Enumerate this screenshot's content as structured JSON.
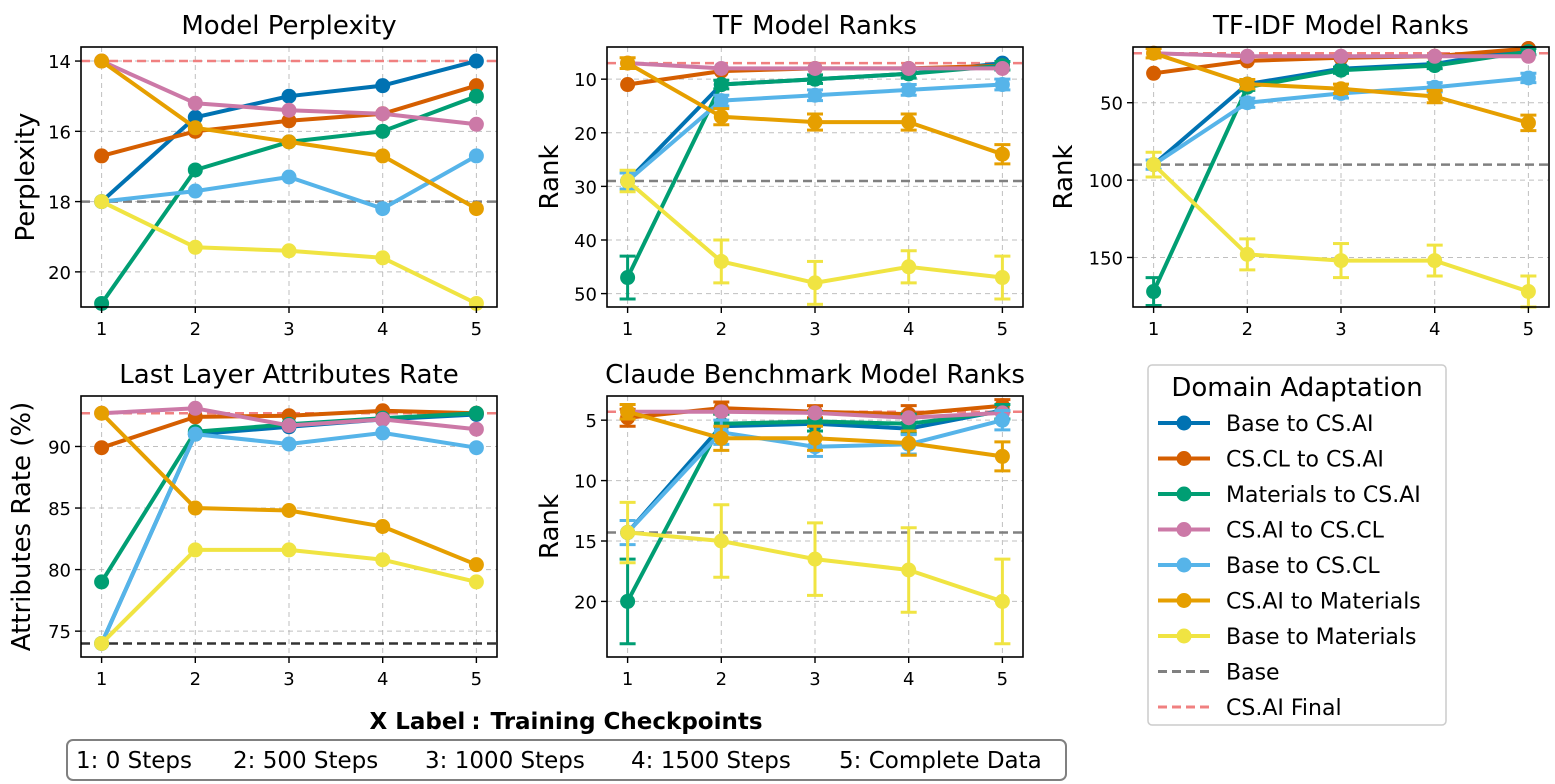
{
  "figure": {
    "x_label_caption": "X Label",
    "x_label_text": "Training Checkpoints",
    "x_label_separator": ":",
    "checkpoint_key": [
      "1: 0 Steps",
      "2: 500 Steps",
      "3: 1000 Steps",
      "4: 1500 Steps",
      "5: Complete Data"
    ]
  },
  "legend": {
    "title": "Domain Adaptation",
    "entries": [
      {
        "label": "Base to CS.AI",
        "color": "#0072b2",
        "style": "solid"
      },
      {
        "label": "CS.CL to CS.AI",
        "color": "#d55e00",
        "style": "solid"
      },
      {
        "label": "Materials to CS.AI",
        "color": "#009e73",
        "style": "solid"
      },
      {
        "label": "CS.AI to CS.CL",
        "color": "#cc79a7",
        "style": "solid"
      },
      {
        "label": "Base to CS.CL",
        "color": "#56b4e9",
        "style": "solid"
      },
      {
        "label": "CS.AI to Materials",
        "color": "#e69f00",
        "style": "solid"
      },
      {
        "label": "Base to Materials",
        "color": "#f0e442",
        "style": "solid"
      },
      {
        "label": "Base",
        "color": "#808080",
        "style": "dashed"
      },
      {
        "label": "CS.AI Final",
        "color": "#f08080",
        "style": "dashed"
      }
    ]
  },
  "chart_data": [
    {
      "type": "line",
      "title": "Model Perplexity",
      "ylabel": "Perplexity",
      "x": [
        1,
        2,
        3,
        4,
        5
      ],
      "xticks": [
        "1",
        "2",
        "3",
        "4",
        "5"
      ],
      "ylim": [
        21.0,
        13.6
      ],
      "yticks": [
        14,
        16,
        18,
        20
      ],
      "ytick_labels": [
        "14",
        "16",
        "18",
        "20"
      ],
      "inverted_y": true,
      "baseline": 18.0,
      "baseline_color": "#808080",
      "reference": 14.0,
      "series": [
        {
          "name": "Base to CS.AI",
          "color": "#0072b2",
          "values": [
            18.0,
            15.6,
            15.0,
            14.7,
            14.0
          ]
        },
        {
          "name": "CS.CL to CS.AI",
          "color": "#d55e00",
          "values": [
            16.7,
            16.0,
            15.7,
            15.5,
            14.7
          ]
        },
        {
          "name": "Materials to CS.AI",
          "color": "#009e73",
          "values": [
            20.9,
            17.1,
            16.3,
            16.0,
            15.0
          ]
        },
        {
          "name": "CS.AI to CS.CL",
          "color": "#cc79a7",
          "values": [
            14.0,
            15.2,
            15.4,
            15.5,
            15.8
          ]
        },
        {
          "name": "Base to CS.CL",
          "color": "#56b4e9",
          "values": [
            18.0,
            17.7,
            17.3,
            18.2,
            16.7
          ]
        },
        {
          "name": "CS.AI to Materials",
          "color": "#e69f00",
          "values": [
            14.0,
            15.9,
            16.3,
            16.7,
            18.2
          ]
        },
        {
          "name": "Base to Materials",
          "color": "#f0e442",
          "values": [
            18.0,
            19.3,
            19.4,
            19.6,
            20.9
          ]
        }
      ]
    },
    {
      "type": "line",
      "title": "TF Model Ranks",
      "ylabel": "Rank",
      "x": [
        1,
        2,
        3,
        4,
        5
      ],
      "xticks": [
        "1",
        "2",
        "3",
        "4",
        "5"
      ],
      "ylim": [
        52.5,
        4.0
      ],
      "yticks": [
        10,
        20,
        30,
        40,
        50
      ],
      "ytick_labels": [
        "10",
        "20",
        "30",
        "40",
        "50"
      ],
      "inverted_y": true,
      "baseline": 29.0,
      "baseline_color": "#808080",
      "reference": 7.0,
      "series": [
        {
          "name": "Base to CS.AI",
          "color": "#0072b2",
          "values": [
            29,
            11,
            10,
            9,
            7
          ]
        },
        {
          "name": "CS.CL to CS.AI",
          "color": "#d55e00",
          "values": [
            11,
            8.5,
            8,
            8,
            7.5
          ]
        },
        {
          "name": "Materials to CS.AI",
          "color": "#009e73",
          "values": [
            47,
            11,
            10,
            9,
            7.5
          ],
          "errors": [
            4,
            0.8,
            0.8,
            0.8,
            0.8
          ]
        },
        {
          "name": "CS.AI to CS.CL",
          "color": "#cc79a7",
          "values": [
            7,
            8,
            8,
            8,
            8
          ]
        },
        {
          "name": "Base to CS.CL",
          "color": "#56b4e9",
          "values": [
            29,
            14,
            13,
            12,
            11
          ],
          "errors": [
            1.5,
            1,
            1,
            1,
            1
          ]
        },
        {
          "name": "CS.AI to Materials",
          "color": "#e69f00",
          "values": [
            7,
            17,
            18,
            18,
            24
          ],
          "errors": [
            1,
            1.5,
            1.5,
            1.5,
            1.8
          ]
        },
        {
          "name": "Base to Materials",
          "color": "#f0e442",
          "values": [
            29,
            44,
            48,
            45,
            47
          ],
          "errors": [
            2,
            4,
            4,
            3,
            4
          ]
        }
      ]
    },
    {
      "type": "line",
      "title": "TF-IDF Model Ranks",
      "ylabel": "Rank",
      "x": [
        1,
        2,
        3,
        4,
        5
      ],
      "xticks": [
        "1",
        "2",
        "3",
        "4",
        "5"
      ],
      "ylim": [
        182,
        14
      ],
      "yticks": [
        50,
        100,
        150
      ],
      "ytick_labels": [
        "50",
        "100",
        "150"
      ],
      "inverted_y": true,
      "baseline": 90.0,
      "baseline_color": "#808080",
      "reference": 18.0,
      "series": [
        {
          "name": "Base to CS.AI",
          "color": "#0072b2",
          "values": [
            90,
            38,
            28,
            25,
            15
          ]
        },
        {
          "name": "CS.CL to CS.AI",
          "color": "#d55e00",
          "values": [
            31,
            23,
            21,
            20,
            15
          ]
        },
        {
          "name": "Materials to CS.AI",
          "color": "#009e73",
          "values": [
            172,
            40,
            29,
            26,
            17
          ],
          "errors": [
            9,
            2,
            2,
            2,
            2
          ]
        },
        {
          "name": "CS.AI to CS.CL",
          "color": "#cc79a7",
          "values": [
            18,
            20,
            20,
            20,
            20
          ]
        },
        {
          "name": "Base to CS.CL",
          "color": "#56b4e9",
          "values": [
            90,
            50,
            44,
            40,
            34
          ],
          "errors": [
            3,
            3,
            3,
            3,
            3
          ]
        },
        {
          "name": "CS.AI to Materials",
          "color": "#e69f00",
          "values": [
            18,
            38,
            41,
            46,
            63
          ],
          "errors": [
            3,
            3,
            3,
            4,
            5
          ]
        },
        {
          "name": "Base to Materials",
          "color": "#f0e442",
          "values": [
            90,
            148,
            152,
            152,
            172
          ],
          "errors": [
            8,
            10,
            11,
            10,
            10
          ]
        }
      ]
    },
    {
      "type": "line",
      "title": "Last Layer Attributes Rate",
      "ylabel": "Attributes Rate (%)",
      "x": [
        1,
        2,
        3,
        4,
        5
      ],
      "xticks": [
        "1",
        "2",
        "3",
        "4",
        "5"
      ],
      "ylim": [
        72.9,
        94.1
      ],
      "yticks": [
        75,
        80,
        85,
        90
      ],
      "ytick_labels": [
        "75",
        "80",
        "85",
        "90"
      ],
      "inverted_y": false,
      "baseline": 74.0,
      "baseline_color": "#333333",
      "reference": 92.7,
      "series": [
        {
          "name": "Base to CS.AI",
          "color": "#0072b2",
          "values": [
            74.0,
            91.0,
            91.6,
            92.2,
            92.6
          ]
        },
        {
          "name": "CS.CL to CS.AI",
          "color": "#d55e00",
          "values": [
            89.9,
            92.4,
            92.5,
            92.9,
            92.7
          ]
        },
        {
          "name": "Materials to CS.AI",
          "color": "#009e73",
          "values": [
            79.0,
            91.2,
            91.8,
            92.3,
            92.7
          ]
        },
        {
          "name": "CS.AI to CS.CL",
          "color": "#cc79a7",
          "values": [
            92.7,
            93.1,
            91.7,
            92.2,
            91.4
          ]
        },
        {
          "name": "Base to CS.CL",
          "color": "#56b4e9",
          "values": [
            74.0,
            91.0,
            90.2,
            91.1,
            89.9
          ]
        },
        {
          "name": "CS.AI to Materials",
          "color": "#e69f00",
          "values": [
            92.7,
            85.0,
            84.8,
            83.5,
            80.4
          ]
        },
        {
          "name": "Base to Materials",
          "color": "#f0e442",
          "values": [
            74.0,
            81.6,
            81.6,
            80.8,
            79.0
          ]
        }
      ]
    },
    {
      "type": "line",
      "title": "Claude Benchmark Model Ranks",
      "ylabel": "Rank",
      "x": [
        1,
        2,
        3,
        4,
        5
      ],
      "xticks": [
        "1",
        "2",
        "3",
        "4",
        "5"
      ],
      "ylim": [
        24.6,
        3.0
      ],
      "yticks": [
        5,
        10,
        15,
        20
      ],
      "ytick_labels": [
        "5",
        "10",
        "15",
        "20"
      ],
      "inverted_y": true,
      "baseline": 14.3,
      "baseline_color": "#808080",
      "reference": 4.3,
      "series": [
        {
          "name": "Base to CS.AI",
          "color": "#0072b2",
          "values": [
            14.3,
            5.5,
            5.3,
            5.7,
            4.2
          ]
        },
        {
          "name": "CS.CL to CS.AI",
          "color": "#d55e00",
          "values": [
            4.8,
            4.0,
            4.3,
            4.5,
            3.8
          ],
          "errors": [
            0.7,
            0.5,
            0.5,
            0.7,
            0.5
          ]
        },
        {
          "name": "Materials to CS.AI",
          "color": "#009e73",
          "values": [
            20.0,
            5.3,
            5.1,
            5.3,
            4.3
          ],
          "errors": [
            3.5,
            0.8,
            0.8,
            0.8,
            0.6
          ]
        },
        {
          "name": "CS.AI to CS.CL",
          "color": "#cc79a7",
          "values": [
            4.3,
            4.3,
            4.4,
            4.8,
            4.4
          ]
        },
        {
          "name": "Base to CS.CL",
          "color": "#56b4e9",
          "values": [
            14.3,
            6.0,
            7.2,
            7.0,
            5.0
          ],
          "errors": [
            1,
            1,
            0.8,
            0.8,
            0.8
          ]
        },
        {
          "name": "CS.AI to Materials",
          "color": "#e69f00",
          "values": [
            4.3,
            6.5,
            6.5,
            6.9,
            8.0
          ],
          "errors": [
            0.6,
            1,
            1,
            1,
            1.2
          ]
        },
        {
          "name": "Base to Materials",
          "color": "#f0e442",
          "values": [
            14.3,
            15.0,
            16.5,
            17.4,
            20.0
          ],
          "errors": [
            2.5,
            3,
            3,
            3.5,
            3.5
          ]
        }
      ]
    }
  ]
}
